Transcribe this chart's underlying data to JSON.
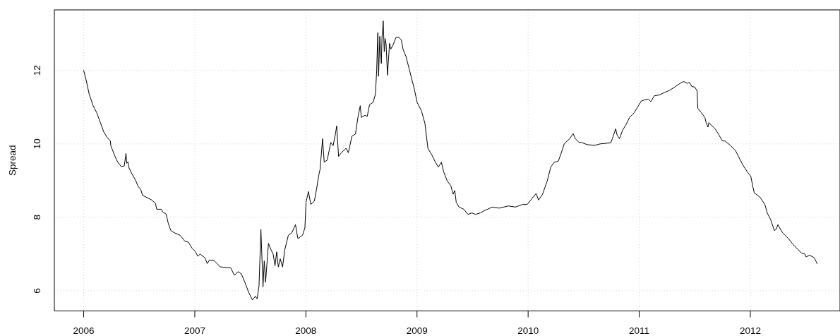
{
  "chart_data": {
    "type": "line",
    "ylabel": "Spread",
    "color": "#000000",
    "grid": true,
    "xlim": [
      2005.736,
      2012.807
    ],
    "xticks": [
      2006,
      2007,
      2008,
      2009,
      2010,
      2011,
      2012
    ],
    "ylim": [
      5.45,
      13.65
    ],
    "yticks": [
      6,
      8,
      10,
      12
    ],
    "x": [
      2006.0,
      2006.022,
      2006.049,
      2006.085,
      2006.117,
      2006.149,
      2006.18,
      2006.212,
      2006.24,
      2006.244,
      2006.286,
      2006.307,
      2006.339,
      2006.365,
      2006.381,
      2006.388,
      2006.398,
      2006.409,
      2006.435,
      2006.466,
      2006.487,
      2006.513,
      2006.53,
      2006.562,
      2006.614,
      2006.646,
      2006.657,
      2006.699,
      2006.71,
      2006.741,
      2006.762,
      2006.784,
      2006.816,
      2006.868,
      2006.911,
      2006.943,
      2006.975,
      2007.006,
      2007.027,
      2007.048,
      2007.091,
      2007.112,
      2007.133,
      2007.175,
      2007.229,
      2007.324,
      2007.356,
      2007.388,
      2007.419,
      2007.451,
      2007.483,
      2007.518,
      2007.546,
      2007.561,
      2007.578,
      2007.595,
      2007.614,
      2007.625,
      2007.637,
      2007.663,
      2007.684,
      2007.705,
      2007.722,
      2007.737,
      2007.752,
      2007.769,
      2007.79,
      2007.811,
      2007.842,
      2007.874,
      2007.906,
      2007.928,
      2007.969,
      2007.991,
      2008.001,
      2008.023,
      2008.044,
      2008.076,
      2008.097,
      2008.118,
      2008.128,
      2008.15,
      2008.165,
      2008.192,
      2008.224,
      2008.245,
      2008.266,
      2008.277,
      2008.294,
      2008.319,
      2008.361,
      2008.382,
      2008.414,
      2008.446,
      2008.468,
      2008.489,
      2008.499,
      2008.531,
      2008.552,
      2008.573,
      2008.605,
      2008.626,
      2008.637,
      2008.647,
      2008.654,
      2008.665,
      2008.671,
      2008.679,
      2008.685,
      2008.696,
      2008.705,
      2008.713,
      2008.722,
      2008.734,
      2008.753,
      2008.764,
      2008.785,
      2008.811,
      2008.838,
      2008.859,
      2008.874,
      2008.901,
      2008.933,
      2008.976,
      2009.001,
      2009.039,
      2009.071,
      2009.098,
      2009.135,
      2009.166,
      2009.192,
      2009.219,
      2009.24,
      2009.272,
      2009.304,
      2009.325,
      2009.34,
      2009.353,
      2009.378,
      2009.421,
      2009.459,
      2009.494,
      2009.526,
      2009.569,
      2009.611,
      2009.643,
      2009.675,
      2009.738,
      2009.823,
      2009.886,
      2009.95,
      2009.992,
      2010.034,
      2010.072,
      2010.094,
      2010.13,
      2010.172,
      2010.204,
      2010.236,
      2010.272,
      2010.299,
      2010.326,
      2010.374,
      2010.405,
      2010.426,
      2010.458,
      2010.479,
      2010.532,
      2010.596,
      2010.649,
      2010.744,
      2010.758,
      2010.776,
      2010.788,
      2010.801,
      2010.822,
      2010.85,
      2010.882,
      2010.913,
      2010.955,
      2010.987,
      2011.019,
      2011.051,
      2011.082,
      2011.104,
      2011.136,
      2011.178,
      2011.22,
      2011.273,
      2011.326,
      2011.368,
      2011.4,
      2011.432,
      2011.453,
      2011.474,
      2011.5,
      2011.521,
      2011.527,
      2011.559,
      2011.591,
      2011.601,
      2011.619,
      2011.627,
      2011.665,
      2011.686,
      2011.718,
      2011.749,
      2011.771,
      2011.824,
      2011.866,
      2011.898,
      2011.93,
      2011.972,
      2012.004,
      2012.021,
      2012.035,
      2012.089,
      2012.131,
      2012.152,
      2012.184,
      2012.216,
      2012.232,
      2012.248,
      2012.29,
      2012.343,
      2012.385,
      2012.427,
      2012.459,
      2012.491,
      2012.502,
      2012.533,
      2012.575,
      2012.601
    ],
    "values": [
      12.0,
      11.74,
      11.36,
      11.04,
      10.85,
      10.59,
      10.33,
      10.17,
      10.08,
      9.95,
      9.63,
      9.5,
      9.38,
      9.4,
      9.74,
      9.47,
      9.51,
      9.34,
      9.18,
      9.02,
      8.86,
      8.76,
      8.6,
      8.55,
      8.47,
      8.38,
      8.22,
      8.22,
      8.15,
      8.09,
      7.83,
      7.64,
      7.58,
      7.51,
      7.35,
      7.32,
      7.16,
      7.06,
      6.94,
      7.0,
      6.9,
      6.74,
      6.84,
      6.82,
      6.65,
      6.62,
      6.42,
      6.52,
      6.46,
      6.23,
      5.97,
      5.75,
      5.85,
      5.78,
      6.13,
      7.67,
      6.1,
      6.81,
      6.23,
      7.29,
      7.13,
      7.0,
      6.68,
      7.06,
      6.65,
      6.87,
      6.65,
      7.13,
      7.51,
      7.58,
      7.8,
      7.42,
      7.51,
      7.71,
      8.41,
      8.7,
      8.35,
      8.44,
      8.79,
      9.18,
      9.31,
      10.14,
      9.5,
      9.56,
      10.04,
      9.95,
      10.27,
      10.49,
      9.66,
      9.76,
      9.88,
      9.76,
      10.21,
      10.27,
      10.72,
      11.04,
      10.72,
      10.78,
      10.75,
      11.07,
      11.13,
      11.36,
      12.0,
      13.03,
      11.84,
      12.93,
      12.58,
      12.19,
      12.9,
      13.35,
      12.51,
      12.87,
      12.71,
      11.87,
      12.74,
      12.58,
      12.7,
      12.9,
      12.9,
      12.83,
      12.58,
      12.38,
      12.0,
      11.49,
      11.13,
      10.91,
      10.56,
      9.88,
      9.69,
      9.5,
      9.37,
      9.5,
      9.24,
      8.99,
      8.86,
      8.63,
      8.73,
      8.41,
      8.28,
      8.22,
      8.08,
      8.12,
      8.08,
      8.12,
      8.19,
      8.23,
      8.28,
      8.25,
      8.31,
      8.28,
      8.35,
      8.35,
      8.51,
      8.65,
      8.47,
      8.63,
      8.99,
      9.37,
      9.5,
      9.53,
      9.76,
      10.01,
      10.14,
      10.28,
      10.14,
      10.04,
      10.04,
      9.98,
      9.96,
      10.0,
      10.03,
      10.14,
      10.3,
      10.41,
      10.24,
      10.14,
      10.37,
      10.53,
      10.72,
      10.85,
      11.01,
      11.17,
      11.2,
      11.22,
      11.15,
      11.31,
      11.33,
      11.39,
      11.46,
      11.56,
      11.65,
      11.7,
      11.65,
      11.67,
      11.56,
      11.55,
      11.44,
      10.97,
      10.85,
      10.72,
      10.59,
      10.46,
      10.58,
      10.46,
      10.4,
      10.24,
      10.08,
      10.08,
      9.95,
      9.82,
      9.63,
      9.44,
      9.24,
      9.12,
      8.86,
      8.67,
      8.54,
      8.35,
      8.12,
      7.93,
      7.64,
      7.67,
      7.8,
      7.58,
      7.42,
      7.26,
      7.13,
      7.03,
      7.0,
      6.92,
      6.97,
      6.9,
      6.74
    ]
  }
}
